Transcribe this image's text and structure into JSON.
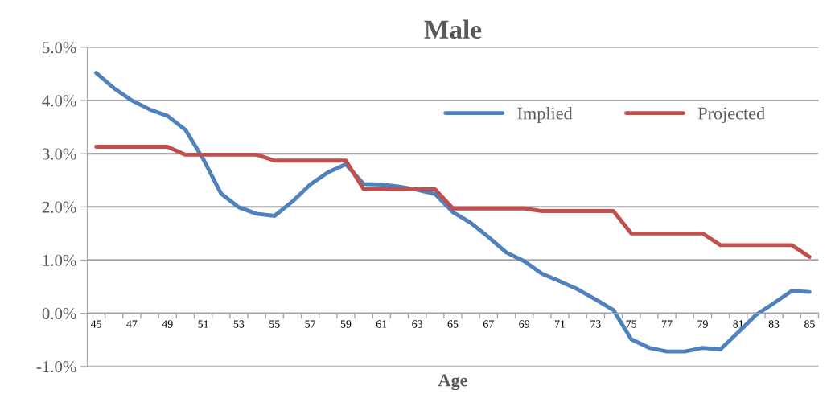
{
  "chart_data": {
    "type": "line",
    "title": "Male",
    "xlabel": "Age",
    "categories": [
      "45",
      null,
      "47",
      null,
      "49",
      null,
      "51",
      null,
      "53",
      null,
      "55",
      null,
      "57",
      null,
      "59",
      null,
      "61",
      null,
      "63",
      null,
      "65",
      null,
      "67",
      null,
      "69",
      null,
      "71",
      null,
      "73",
      null,
      "75",
      null,
      "77",
      null,
      "79",
      null,
      "81",
      null,
      "83",
      null,
      "85"
    ],
    "series": [
      {
        "name": "Implied",
        "color": "#4f81bd",
        "values": [
          4.52,
          4.23,
          4.0,
          3.83,
          3.71,
          3.45,
          2.9,
          2.25,
          1.99,
          1.87,
          1.83,
          2.1,
          2.42,
          2.65,
          2.8,
          2.43,
          2.42,
          2.38,
          2.32,
          2.24,
          1.9,
          1.7,
          1.43,
          1.14,
          0.98,
          0.74,
          0.6,
          0.45,
          0.26,
          0.06,
          -0.49,
          -0.65,
          -0.72,
          -0.72,
          -0.65,
          -0.68,
          -0.36,
          -0.03,
          0.19,
          0.42,
          0.4
        ]
      },
      {
        "name": "Projected",
        "color": "#c0504d",
        "values": [
          3.13,
          3.13,
          3.13,
          3.13,
          3.13,
          2.98,
          2.98,
          2.98,
          2.98,
          2.98,
          2.87,
          2.87,
          2.87,
          2.87,
          2.87,
          2.33,
          2.33,
          2.33,
          2.33,
          2.33,
          1.97,
          1.97,
          1.97,
          1.97,
          1.97,
          1.92,
          1.92,
          1.92,
          1.92,
          1.92,
          1.5,
          1.5,
          1.5,
          1.5,
          1.5,
          1.28,
          1.28,
          1.28,
          1.28,
          1.28,
          1.06
        ]
      }
    ],
    "ylim": [
      -1,
      5
    ],
    "yticks": [
      {
        "value": -1,
        "label": "-1.0%"
      },
      {
        "value": 0,
        "label": "0.0%"
      },
      {
        "value": 1,
        "label": "1.0%"
      },
      {
        "value": 2,
        "label": "2.0%"
      },
      {
        "value": 3,
        "label": "3.0%"
      },
      {
        "value": 4,
        "label": "4.0%"
      },
      {
        "value": 5,
        "label": "5.0%"
      }
    ],
    "grid": "y",
    "legend": "top right",
    "marker": "none",
    "line_style": "solid"
  }
}
